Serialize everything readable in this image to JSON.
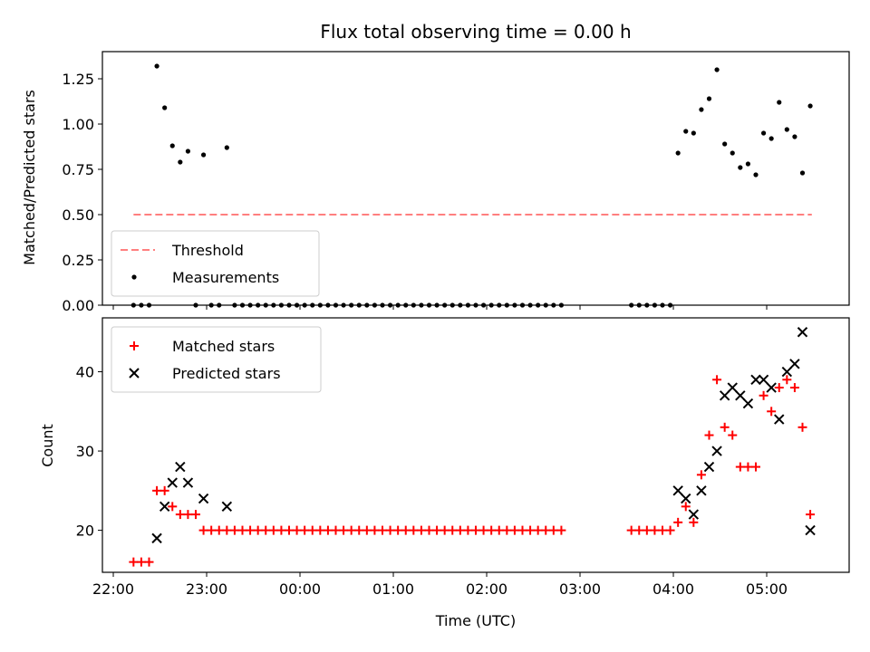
{
  "chart_data": [
    {
      "type": "scatter",
      "title": "Flux total observing time = 0.00 h",
      "xlabel": "",
      "ylabel": "Matched/Predicted stars",
      "xlim": [
        "21:53",
        "05:53"
      ],
      "ylim": [
        0,
        1.4
      ],
      "yticks": [
        "0.00",
        "0.25",
        "0.50",
        "0.75",
        "1.00",
        "1.25"
      ],
      "legend_position": "bottom-left",
      "series": [
        {
          "name": "Threshold",
          "style": "dashed-line",
          "color": "#ff7f7f",
          "points": [
            [
              "22:13",
              0.5
            ],
            [
              "05:29",
              0.5
            ]
          ]
        },
        {
          "name": "Measurements",
          "style": "dot",
          "color": "#000000",
          "points": [
            [
              "22:13",
              0
            ],
            [
              "22:18",
              0
            ],
            [
              "22:23",
              0
            ],
            [
              "22:28",
              1.32
            ],
            [
              "22:33",
              1.09
            ],
            [
              "22:38",
              0.88
            ],
            [
              "22:43",
              0.79
            ],
            [
              "22:48",
              0.85
            ],
            [
              "22:53",
              0
            ],
            [
              "22:58",
              0.83
            ],
            [
              "23:03",
              0
            ],
            [
              "23:08",
              0
            ],
            [
              "23:13",
              0.87
            ],
            [
              "23:18",
              0
            ],
            [
              "23:23",
              0
            ],
            [
              "23:28",
              0
            ],
            [
              "23:33",
              0
            ],
            [
              "23:38",
              0
            ],
            [
              "23:43",
              0
            ],
            [
              "23:48",
              0
            ],
            [
              "23:53",
              0
            ],
            [
              "23:58",
              0
            ],
            [
              "00:03",
              0
            ],
            [
              "00:08",
              0
            ],
            [
              "00:13",
              0
            ],
            [
              "00:18",
              0
            ],
            [
              "00:23",
              0
            ],
            [
              "00:28",
              0
            ],
            [
              "00:33",
              0
            ],
            [
              "00:38",
              0
            ],
            [
              "00:43",
              0
            ],
            [
              "00:48",
              0
            ],
            [
              "00:53",
              0
            ],
            [
              "00:58",
              0
            ],
            [
              "01:03",
              0
            ],
            [
              "01:08",
              0
            ],
            [
              "01:13",
              0
            ],
            [
              "01:18",
              0
            ],
            [
              "01:23",
              0
            ],
            [
              "01:28",
              0
            ],
            [
              "01:33",
              0
            ],
            [
              "01:38",
              0
            ],
            [
              "01:43",
              0
            ],
            [
              "01:48",
              0
            ],
            [
              "01:53",
              0
            ],
            [
              "01:58",
              0
            ],
            [
              "02:03",
              0
            ],
            [
              "02:08",
              0
            ],
            [
              "02:13",
              0
            ],
            [
              "02:18",
              0
            ],
            [
              "02:23",
              0
            ],
            [
              "02:28",
              0
            ],
            [
              "02:33",
              0
            ],
            [
              "02:38",
              0
            ],
            [
              "02:43",
              0
            ],
            [
              "02:48",
              0
            ],
            [
              "03:33",
              0
            ],
            [
              "03:38",
              0
            ],
            [
              "03:43",
              0
            ],
            [
              "03:48",
              0
            ],
            [
              "03:53",
              0
            ],
            [
              "03:58",
              0
            ],
            [
              "04:03",
              0.84
            ],
            [
              "04:08",
              0.96
            ],
            [
              "04:13",
              0.95
            ],
            [
              "04:18",
              1.08
            ],
            [
              "04:23",
              1.14
            ],
            [
              "04:28",
              1.3
            ],
            [
              "04:33",
              0.89
            ],
            [
              "04:38",
              0.84
            ],
            [
              "04:43",
              0.76
            ],
            [
              "04:48",
              0.78
            ],
            [
              "04:53",
              0.72
            ],
            [
              "04:58",
              0.95
            ],
            [
              "05:03",
              0.92
            ],
            [
              "05:08",
              1.12
            ],
            [
              "05:13",
              0.97
            ],
            [
              "05:18",
              0.93
            ],
            [
              "05:23",
              0.73
            ],
            [
              "05:28",
              1.1
            ]
          ]
        }
      ]
    },
    {
      "type": "scatter",
      "title": "",
      "xlabel": "Time (UTC)",
      "ylabel": "Count",
      "xlim": [
        "21:53",
        "05:53"
      ],
      "ylim": [
        14.7,
        46.8
      ],
      "yticks": [
        "20",
        "30",
        "40"
      ],
      "xticks": [
        "22:00",
        "23:00",
        "00:00",
        "01:00",
        "02:00",
        "03:00",
        "04:00",
        "05:00"
      ],
      "legend_position": "top-left",
      "series": [
        {
          "name": "Matched stars",
          "style": "plus",
          "color": "#ff0000",
          "points": [
            [
              "22:13",
              16
            ],
            [
              "22:18",
              16
            ],
            [
              "22:23",
              16
            ],
            [
              "22:28",
              25
            ],
            [
              "22:33",
              25
            ],
            [
              "22:38",
              23
            ],
            [
              "22:43",
              22
            ],
            [
              "22:48",
              22
            ],
            [
              "22:53",
              22
            ],
            [
              "22:58",
              20
            ],
            [
              "23:03",
              20
            ],
            [
              "23:08",
              20
            ],
            [
              "23:13",
              20
            ],
            [
              "23:18",
              20
            ],
            [
              "23:23",
              20
            ],
            [
              "23:28",
              20
            ],
            [
              "23:33",
              20
            ],
            [
              "23:38",
              20
            ],
            [
              "23:43",
              20
            ],
            [
              "23:48",
              20
            ],
            [
              "23:53",
              20
            ],
            [
              "23:58",
              20
            ],
            [
              "00:03",
              20
            ],
            [
              "00:08",
              20
            ],
            [
              "00:13",
              20
            ],
            [
              "00:18",
              20
            ],
            [
              "00:23",
              20
            ],
            [
              "00:28",
              20
            ],
            [
              "00:33",
              20
            ],
            [
              "00:38",
              20
            ],
            [
              "00:43",
              20
            ],
            [
              "00:48",
              20
            ],
            [
              "00:53",
              20
            ],
            [
              "00:58",
              20
            ],
            [
              "01:03",
              20
            ],
            [
              "01:08",
              20
            ],
            [
              "01:13",
              20
            ],
            [
              "01:18",
              20
            ],
            [
              "01:23",
              20
            ],
            [
              "01:28",
              20
            ],
            [
              "01:33",
              20
            ],
            [
              "01:38",
              20
            ],
            [
              "01:43",
              20
            ],
            [
              "01:48",
              20
            ],
            [
              "01:53",
              20
            ],
            [
              "01:58",
              20
            ],
            [
              "02:03",
              20
            ],
            [
              "02:08",
              20
            ],
            [
              "02:13",
              20
            ],
            [
              "02:18",
              20
            ],
            [
              "02:23",
              20
            ],
            [
              "02:28",
              20
            ],
            [
              "02:33",
              20
            ],
            [
              "02:38",
              20
            ],
            [
              "02:43",
              20
            ],
            [
              "02:48",
              20
            ],
            [
              "03:33",
              20
            ],
            [
              "03:38",
              20
            ],
            [
              "03:43",
              20
            ],
            [
              "03:48",
              20
            ],
            [
              "03:53",
              20
            ],
            [
              "03:58",
              20
            ],
            [
              "04:03",
              21
            ],
            [
              "04:08",
              23
            ],
            [
              "04:13",
              21
            ],
            [
              "04:18",
              27
            ],
            [
              "04:23",
              32
            ],
            [
              "04:28",
              39
            ],
            [
              "04:33",
              33
            ],
            [
              "04:38",
              32
            ],
            [
              "04:43",
              28
            ],
            [
              "04:48",
              28
            ],
            [
              "04:53",
              28
            ],
            [
              "04:58",
              37
            ],
            [
              "05:03",
              35
            ],
            [
              "05:08",
              38
            ],
            [
              "05:13",
              39
            ],
            [
              "05:18",
              38
            ],
            [
              "05:23",
              33
            ],
            [
              "05:28",
              22
            ]
          ]
        },
        {
          "name": "Predicted stars",
          "style": "x",
          "color": "#000000",
          "points": [
            [
              "22:28",
              19
            ],
            [
              "22:33",
              23
            ],
            [
              "22:38",
              26
            ],
            [
              "22:43",
              28
            ],
            [
              "22:48",
              26
            ],
            [
              "22:58",
              24
            ],
            [
              "23:13",
              23
            ],
            [
              "04:03",
              25
            ],
            [
              "04:08",
              24
            ],
            [
              "04:13",
              22
            ],
            [
              "04:18",
              25
            ],
            [
              "04:23",
              28
            ],
            [
              "04:28",
              30
            ],
            [
              "04:33",
              37
            ],
            [
              "04:38",
              38
            ],
            [
              "04:43",
              37
            ],
            [
              "04:48",
              36
            ],
            [
              "04:53",
              39
            ],
            [
              "04:58",
              39
            ],
            [
              "05:03",
              38
            ],
            [
              "05:08",
              34
            ],
            [
              "05:13",
              40
            ],
            [
              "05:18",
              41
            ],
            [
              "05:23",
              45
            ],
            [
              "05:28",
              20
            ]
          ]
        }
      ]
    }
  ]
}
